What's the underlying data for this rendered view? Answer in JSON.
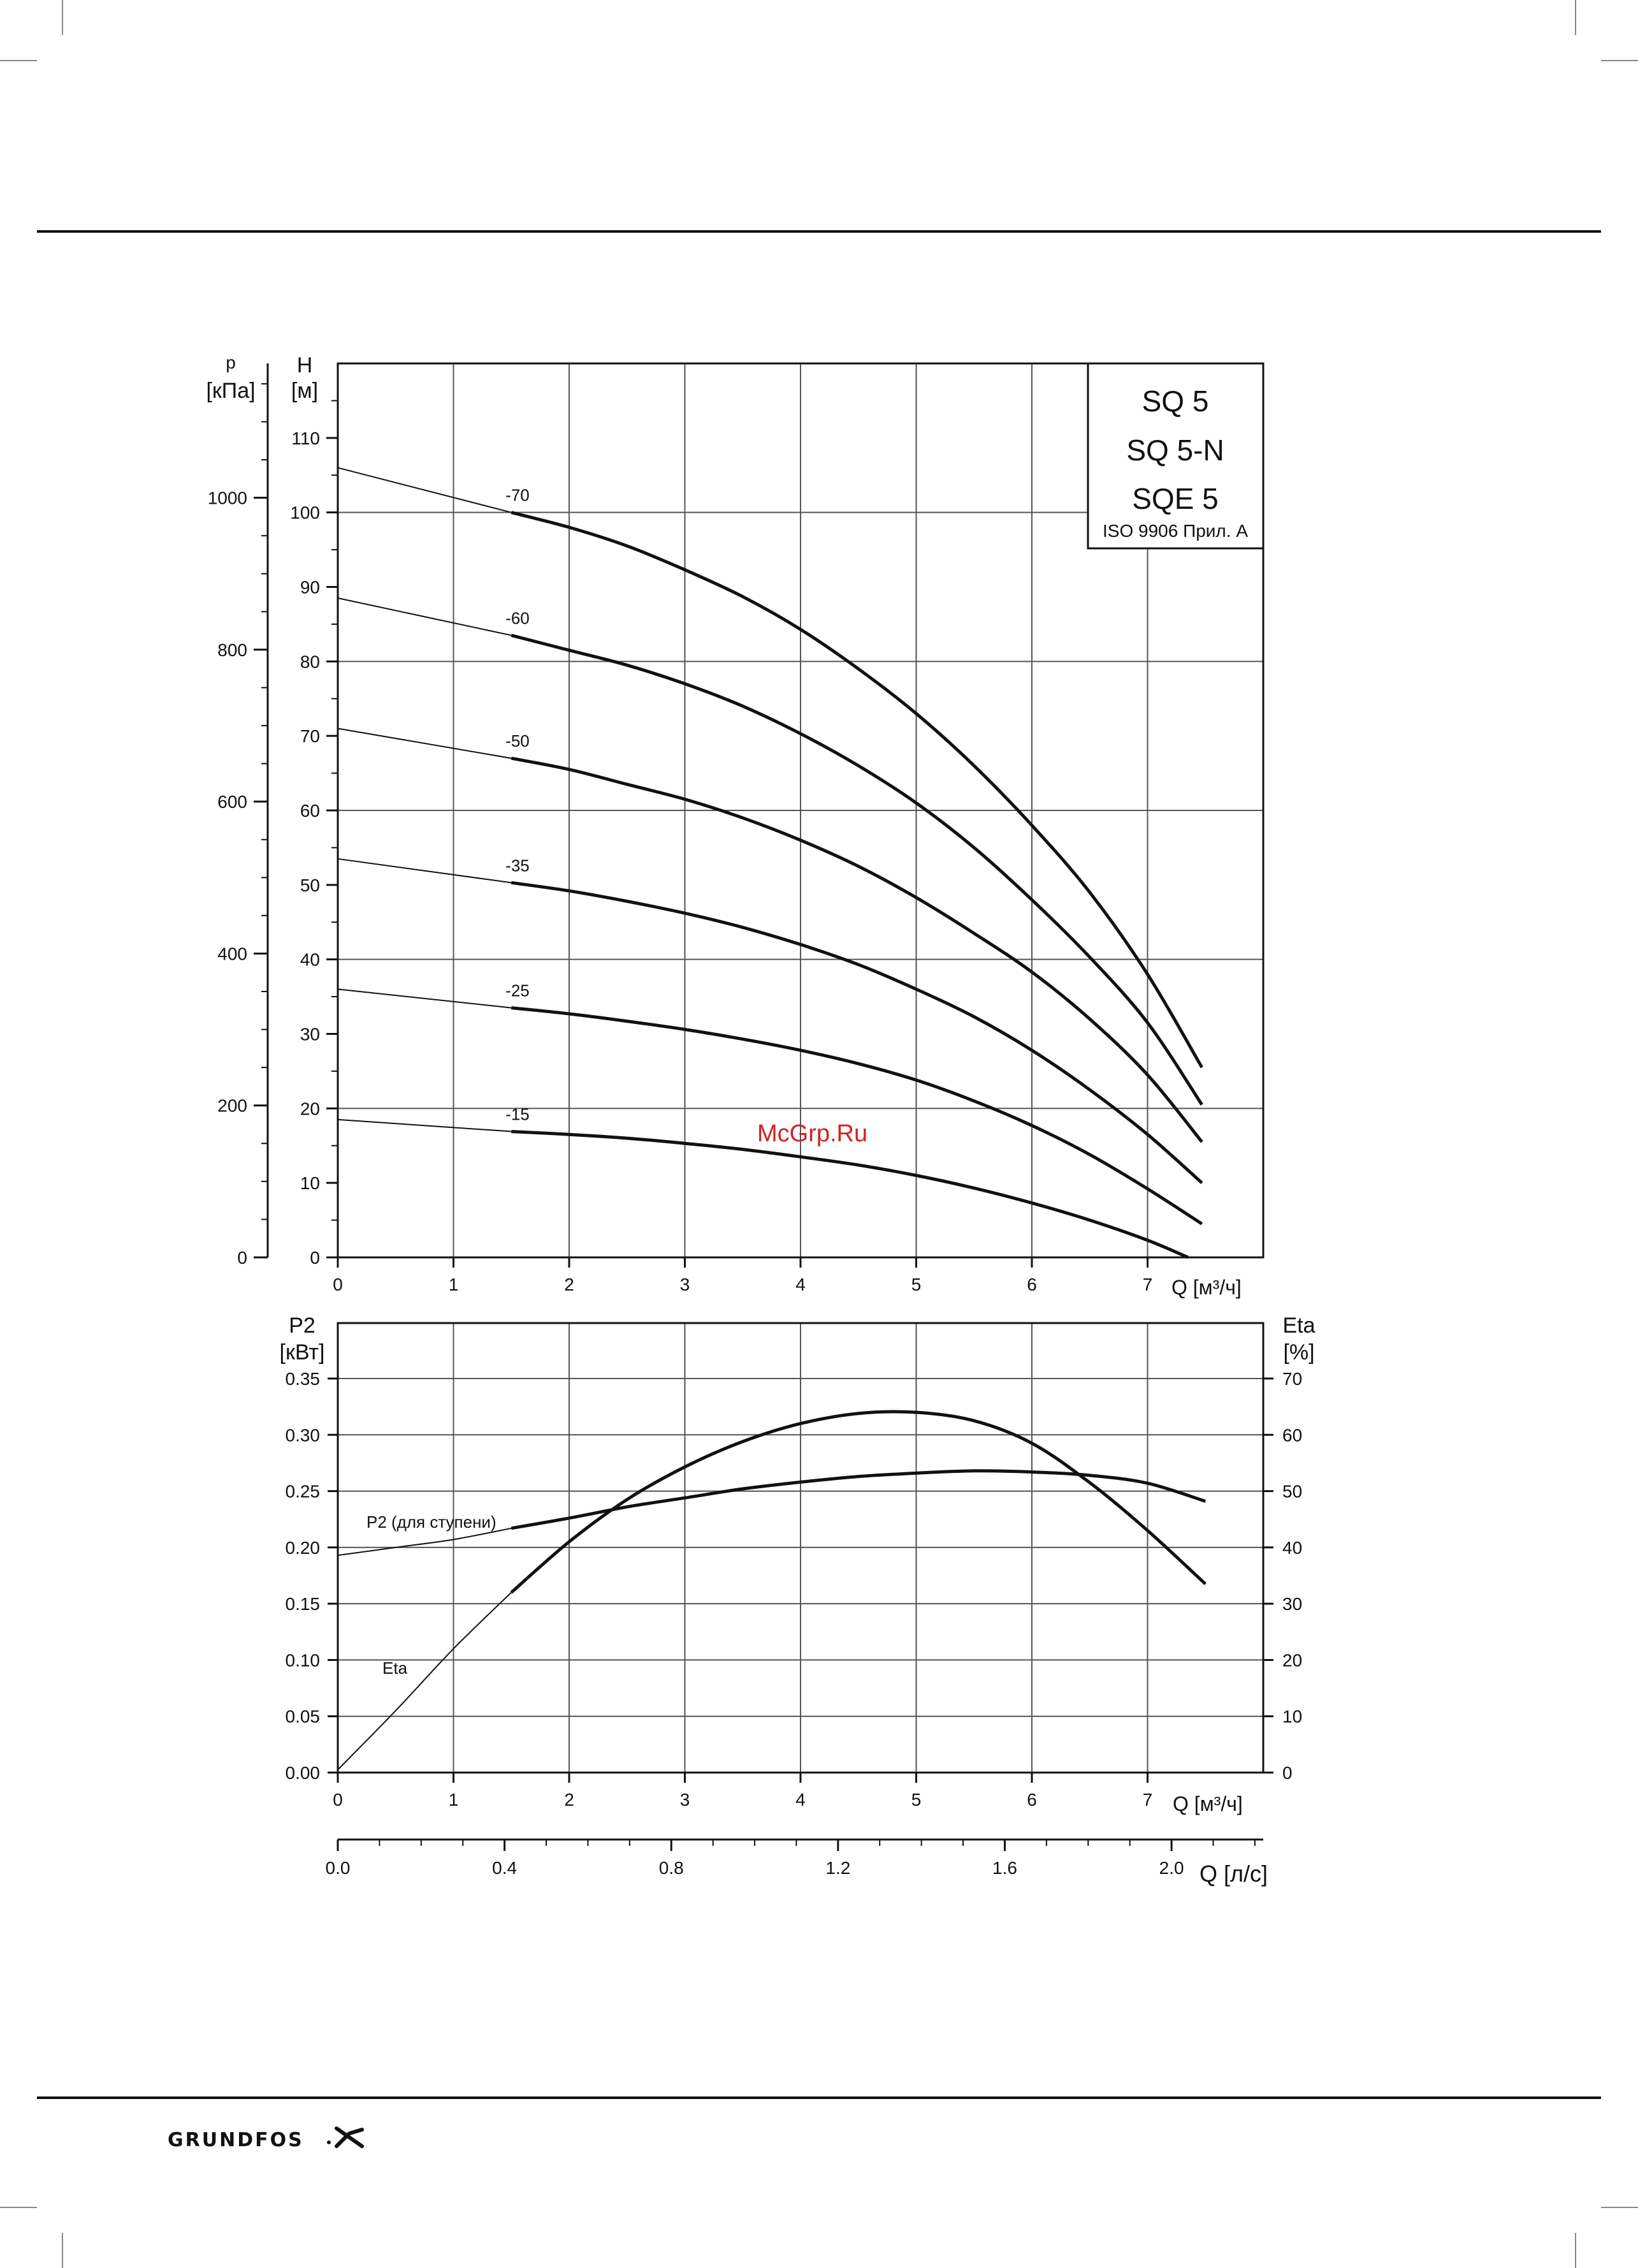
{
  "document": {
    "legend_box": {
      "models": [
        "SQ 5",
        "SQ 5-N",
        "SQE 5"
      ],
      "standard": "ISO 9906 Прил. A"
    },
    "watermark": "McGrp.Ru",
    "brand": "GRUNDFOS"
  },
  "chart_data": [
    {
      "type": "line",
      "y_label_outer": [
        "p",
        "[кПа]"
      ],
      "y_label_inner": [
        "H",
        "[м]"
      ],
      "x_label": "Q [м³/ч]",
      "x_ticks": [
        "0",
        "1",
        "2",
        "3",
        "4",
        "5",
        "6",
        "7"
      ],
      "xlim": [
        0,
        8
      ],
      "ylim": [
        0,
        120
      ],
      "y_ticks": [
        "0",
        "10",
        "20",
        "30",
        "40",
        "50",
        "60",
        "70",
        "80",
        "90",
        "100",
        "110"
      ],
      "p_ticks": [
        "0",
        "200",
        "400",
        "600",
        "800",
        "1000"
      ],
      "grid": true,
      "series": [
        {
          "name": "-70",
          "shutoff": 106,
          "x": [
            1.5,
            2,
            2.5,
            3,
            3.5,
            4,
            4.5,
            5,
            5.5,
            6,
            6.5,
            7,
            7.47
          ],
          "y": [
            100,
            98,
            95.5,
            92.3,
            88.7,
            84.3,
            79,
            73,
            66,
            58,
            49,
            38,
            25.5
          ]
        },
        {
          "name": "-60",
          "shutoff": 88.5,
          "x": [
            1.5,
            2,
            2.5,
            3,
            3.5,
            4,
            4.5,
            5,
            5.5,
            6,
            6.5,
            7,
            7.47
          ],
          "y": [
            83.5,
            81.5,
            79.5,
            77,
            74,
            70.3,
            66,
            61,
            55,
            48,
            40.3,
            31.5,
            20.5
          ]
        },
        {
          "name": "-50",
          "shutoff": 71,
          "x": [
            1.5,
            2,
            2.5,
            3,
            3.5,
            4,
            4.5,
            5,
            5.5,
            6,
            6.5,
            7,
            7.47
          ],
          "y": [
            67,
            65.5,
            63.5,
            61.5,
            59,
            56,
            52.5,
            48.3,
            43.5,
            38.3,
            32,
            24.5,
            15.5
          ]
        },
        {
          "name": "-35",
          "shutoff": 53.5,
          "x": [
            1.5,
            2,
            2.5,
            3,
            3.5,
            4,
            4.5,
            5,
            5.5,
            6,
            6.5,
            7,
            7.47
          ],
          "y": [
            50.3,
            49.2,
            47.8,
            46.2,
            44.3,
            42,
            39.3,
            36,
            32.3,
            27.8,
            22.5,
            16.5,
            10
          ]
        },
        {
          "name": "-25",
          "shutoff": 36,
          "x": [
            1.5,
            2,
            2.5,
            3,
            3.5,
            4,
            4.5,
            5,
            5.5,
            6,
            6.5,
            7,
            7.47
          ],
          "y": [
            33.5,
            32.7,
            31.7,
            30.6,
            29.3,
            27.8,
            26,
            23.8,
            21,
            17.7,
            13.8,
            9.2,
            4.5
          ]
        },
        {
          "name": "-15",
          "shutoff": 18.5,
          "x": [
            1.5,
            2,
            2.5,
            3,
            3.5,
            4,
            4.5,
            5,
            5.5,
            6,
            6.5,
            7,
            7.35
          ],
          "y": [
            16.9,
            16.5,
            16,
            15.3,
            14.5,
            13.5,
            12.4,
            11,
            9.3,
            7.3,
            5,
            2.3,
            0
          ]
        }
      ]
    },
    {
      "type": "line",
      "y_label_left": [
        "P2",
        "[кВт]"
      ],
      "y_label_right": [
        "Eta",
        "[%]"
      ],
      "x_label": "Q [м³/ч]",
      "x_ticks": [
        "0",
        "1",
        "2",
        "3",
        "4",
        "5",
        "6",
        "7"
      ],
      "xlim": [
        0,
        8
      ],
      "ylim_left": [
        0,
        0.35
      ],
      "ylim_right": [
        0,
        70
      ],
      "y_ticks_left": [
        "0.00",
        "0.05",
        "0.10",
        "0.15",
        "0.20",
        "0.25",
        "0.30",
        "0.35"
      ],
      "y_ticks_right": [
        "0",
        "10",
        "20",
        "30",
        "40",
        "50",
        "60",
        "70"
      ],
      "grid": true,
      "secondary_axis": {
        "label": "Q [л/с]",
        "ticks": [
          "0.0",
          "0.4",
          "0.8",
          "1.2",
          "1.6",
          "2.0"
        ],
        "tick_values": [
          0,
          0.4,
          0.8,
          1.2,
          1.6,
          2.0
        ],
        "lim": [
          0,
          2.22
        ]
      },
      "series": [
        {
          "name": "P2 (для ступени)",
          "axis": "left",
          "x": [
            0,
            0.5,
            1,
            1.5,
            2,
            2.5,
            3,
            3.5,
            4,
            4.5,
            5,
            5.5,
            6,
            6.5,
            7,
            7.5
          ],
          "y": [
            0.193,
            0.2,
            0.207,
            0.217,
            0.226,
            0.236,
            0.244,
            0.252,
            0.258,
            0.263,
            0.266,
            0.268,
            0.267,
            0.264,
            0.257,
            0.241
          ],
          "thin_until": 1.5
        },
        {
          "name": "Eta",
          "axis": "right",
          "x": [
            0,
            0.5,
            1,
            1.5,
            2,
            2.5,
            3,
            3.5,
            4,
            4.5,
            5,
            5.5,
            6,
            6.5,
            7,
            7.5
          ],
          "y": [
            0.5,
            11,
            22,
            32,
            41,
            48.5,
            54.3,
            58.8,
            62,
            63.8,
            64,
            62.5,
            58.5,
            51.5,
            43,
            33.5
          ],
          "thin_until": 1.5
        }
      ]
    }
  ]
}
